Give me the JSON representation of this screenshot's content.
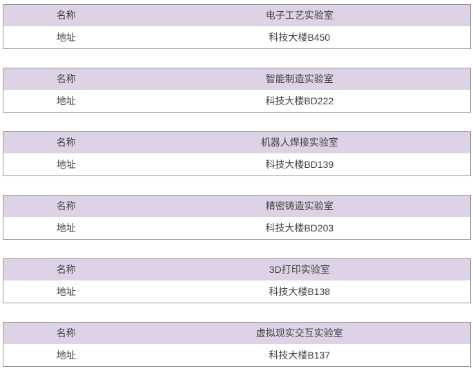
{
  "field_labels": {
    "name": "名称",
    "address": "地址"
  },
  "labs": [
    {
      "name": "电子工艺实验室",
      "address": "科技大楼B450"
    },
    {
      "name": "智能制造实验室",
      "address": "科技大楼BD222"
    },
    {
      "name": "机器人焊接实验室",
      "address": "科技大楼BD139"
    },
    {
      "name": "精密铸造实验室",
      "address": "科技大楼BD203"
    },
    {
      "name": "3D打印实验室",
      "address": "科技大楼B138"
    },
    {
      "name": "虚拟现实交互实验室",
      "address": "科技大楼B137"
    }
  ],
  "colors": {
    "header_bg": "#ded3e6",
    "border": "#979797",
    "text": "#3f3f3f",
    "page_bg": "#ffffff"
  }
}
